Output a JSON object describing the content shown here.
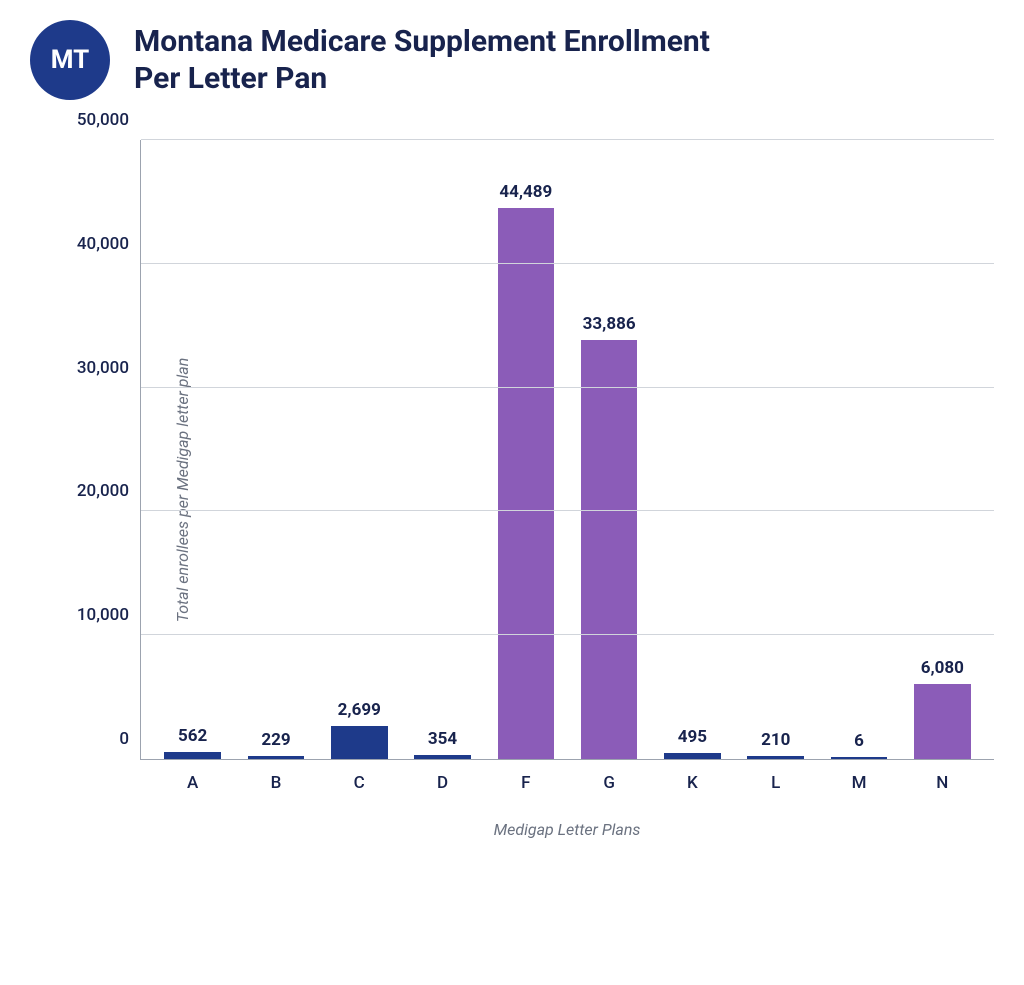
{
  "header": {
    "badge_text": "MT",
    "badge_bg": "#1e3a8a",
    "badge_fg": "#ffffff",
    "title_line1": "Montana Medicare Supplement Enrollment",
    "title_line2": "Per Letter Pan",
    "title_color": "#18234d",
    "title_fontsize": 30
  },
  "chart": {
    "type": "bar",
    "ylabel": "Total enrollees per Medigap letter plan",
    "xlabel": "Medigap Letter Plans",
    "axis_label_color": "#6b7280",
    "axis_label_fontsize": 16,
    "tick_color": "#18234d",
    "tick_fontsize": 17,
    "value_label_fontsize": 17,
    "ylim_max": 50000,
    "ytick_step": 10000,
    "yticks": [
      {
        "v": 0,
        "label": "0"
      },
      {
        "v": 10000,
        "label": "10,000"
      },
      {
        "v": 20000,
        "label": "20,000"
      },
      {
        "v": 30000,
        "label": "30,000"
      },
      {
        "v": 40000,
        "label": "40,000"
      },
      {
        "v": 50000,
        "label": "50,000"
      }
    ],
    "grid_color": "#d1d5db",
    "axis_line_color": "#9ca3af",
    "background_color": "#ffffff",
    "bar_colors": {
      "small": "#1e3a8a",
      "large": "#8b5cb8"
    },
    "bars": [
      {
        "category": "A",
        "value": 562,
        "label": "562",
        "color_key": "small"
      },
      {
        "category": "B",
        "value": 229,
        "label": "229",
        "color_key": "small"
      },
      {
        "category": "C",
        "value": 2699,
        "label": "2,699",
        "color_key": "small"
      },
      {
        "category": "D",
        "value": 354,
        "label": "354",
        "color_key": "small"
      },
      {
        "category": "F",
        "value": 44489,
        "label": "44,489",
        "color_key": "large"
      },
      {
        "category": "G",
        "value": 33886,
        "label": "33,886",
        "color_key": "large"
      },
      {
        "category": "K",
        "value": 495,
        "label": "495",
        "color_key": "small"
      },
      {
        "category": "L",
        "value": 210,
        "label": "210",
        "color_key": "small"
      },
      {
        "category": "M",
        "value": 6,
        "label": "6",
        "color_key": "small"
      },
      {
        "category": "N",
        "value": 6080,
        "label": "6,080",
        "color_key": "large"
      }
    ]
  }
}
